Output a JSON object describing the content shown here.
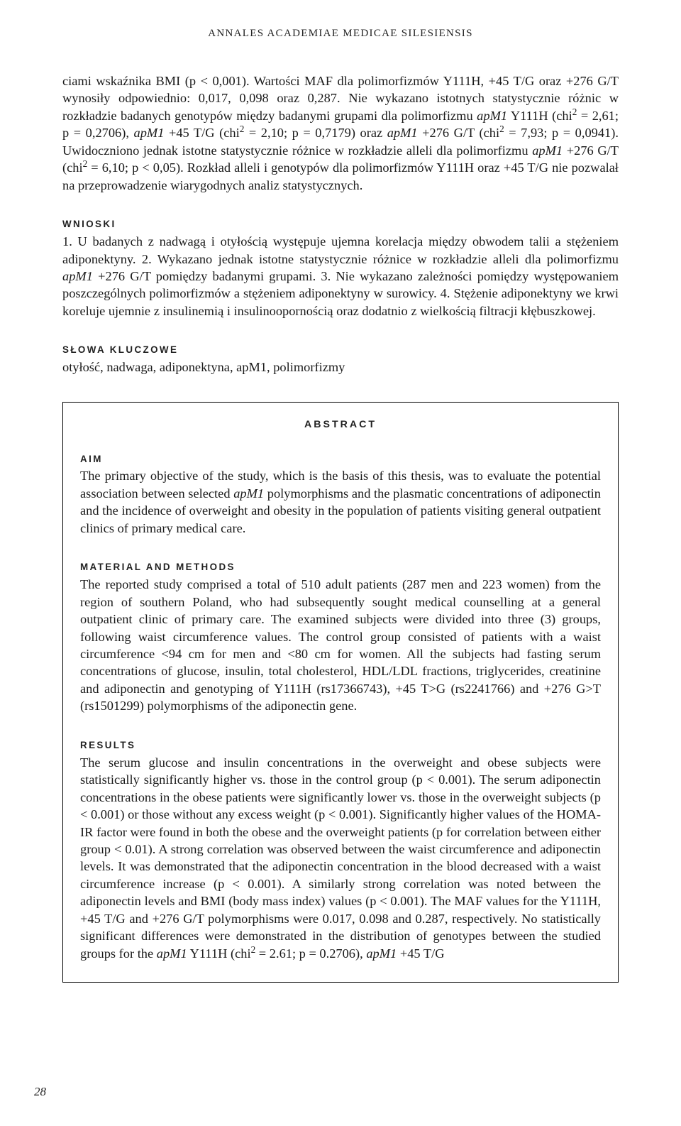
{
  "running_head": "ANNALES ACADEMIAE MEDICAE SILESIENSIS",
  "lead_paragraph_html": "ciami wskaźnika BMI (p &lt; 0,001). Wartości MAF dla polimorfizmów Y111H, +45 T/G oraz +276 G/T wynosiły odpowiednio: 0,017, 0,098 oraz 0,287. Nie wykazano istotnych statystycznie różnic w rozkładzie badanych genotypów między badanymi grupami dla polimorfizmu <span class=\"ital\">apM1</span> Y111H (chi<sup>2</sup> = 2,61; p = 0,2706), <span class=\"ital\">apM1</span> +45 T/G (chi<sup>2</sup> = 2,10; p = 0,7179) oraz <span class=\"ital\">apM1</span> +276 G/T (chi<sup>2</sup> = 7,93; p = 0,0941). Uwidoczniono jednak istotne statystycznie różnice w rozkładzie alleli dla polimorfizmu <span class=\"ital\">apM1</span> +276 G/T (chi<sup>2</sup> = 6,10; p &lt; 0,05). Rozkład alleli i genotypów dla polimorfizmów Y111H oraz +45 T/G nie pozwalał na przeprowadzenie wiarygodnych analiz statystycznych.",
  "wnioski_label": "WNIOSKI",
  "wnioski_html": "1. U badanych z nadwagą i otyłością występuje ujemna korelacja między obwodem talii a stężeniem adiponektyny. 2. Wykazano jednak istotne statystycznie różnice w rozkładzie alleli dla polimorfizmu <span class=\"ital\">apM1</span> +276 G/T pomiędzy badanymi grupami. 3. Nie wykazano zależności pomiędzy występowaniem poszczególnych polimorfizmów a stężeniem adiponektyny w surowicy. 4. Stężenie adiponektyny we krwi koreluje ujemnie z insulinemią i insulinoopornością oraz dodatnio z wielkością filtracji kłębuszkowej.",
  "keywords_label": "SŁOWA KLUCZOWE",
  "keywords_text": "otyłość, nadwaga, adiponektyna, apM1, polimorfizmy",
  "abstract": {
    "heading": "ABSTRACT",
    "aim_label": "AIM",
    "aim_html": "The primary objective of the study, which is the basis of this thesis, was to evaluate the potential association between selected <span class=\"ital\">apM1</span> polymorphisms and the plasmatic concentrations of adiponectin and the incidence of overweight and obesity in the population of patients visiting general outpatient clinics of primary medical care.",
    "mm_label": "MATERIAL AND METHODS",
    "mm_html": "The reported study comprised a total of 510 adult patients (287 men and 223 women) from the region of southern Poland, who had subsequently sought medical counselling at a general outpatient clinic of primary care. The examined subjects were divided into three (3) groups, following waist circumference values. The control group consisted of patients with a waist circumference &lt;94 cm for men and &lt;80 cm for women. All the subjects had fasting serum concentrations of glucose, insulin, total cholesterol, HDL/LDL fractions, triglycerides, creatinine and adiponectin and genotyping of Y111H (rs17366743), +45 T&gt;G (rs2241766) and +276 G&gt;T (rs1501299) polymorphisms of the adiponectin gene.",
    "results_label": "RESULTS",
    "results_html": "The serum glucose and insulin concentrations in the overweight and obese subjects were statistically significantly higher vs. those in the control group (p &lt; 0.001). The serum adiponectin concentrations in the obese patients were significantly lower vs. those in the overweight subjects (p &lt; 0.001) or those without any excess weight (p &lt; 0.001). Significantly higher values of the HOMA-IR factor were found in both the obese and the overweight patients (p for correlation between either group &lt; 0.01). A strong correlation was observed between the waist circumference and adiponectin levels. It was demonstrated that the adiponectin concentration in the blood decreased with a waist circumference increase (p &lt; 0.001). A similarly strong correlation was noted between the adiponectin levels and BMI (body mass index) values (p &lt; 0.001). The MAF values for the Y111H, +45 T/G and +276 G/T polymorphisms were 0.017, 0.098 and 0.287, respectively. No statistically significant differences were demonstrated in the distribution of genotypes between the studied groups for the <span class=\"ital\">apM1</span> Y111H (chi<sup>2</sup> = 2.61; p = 0.2706), <span class=\"ital\">apM1</span> +45 T/G"
  },
  "page_number": "28"
}
